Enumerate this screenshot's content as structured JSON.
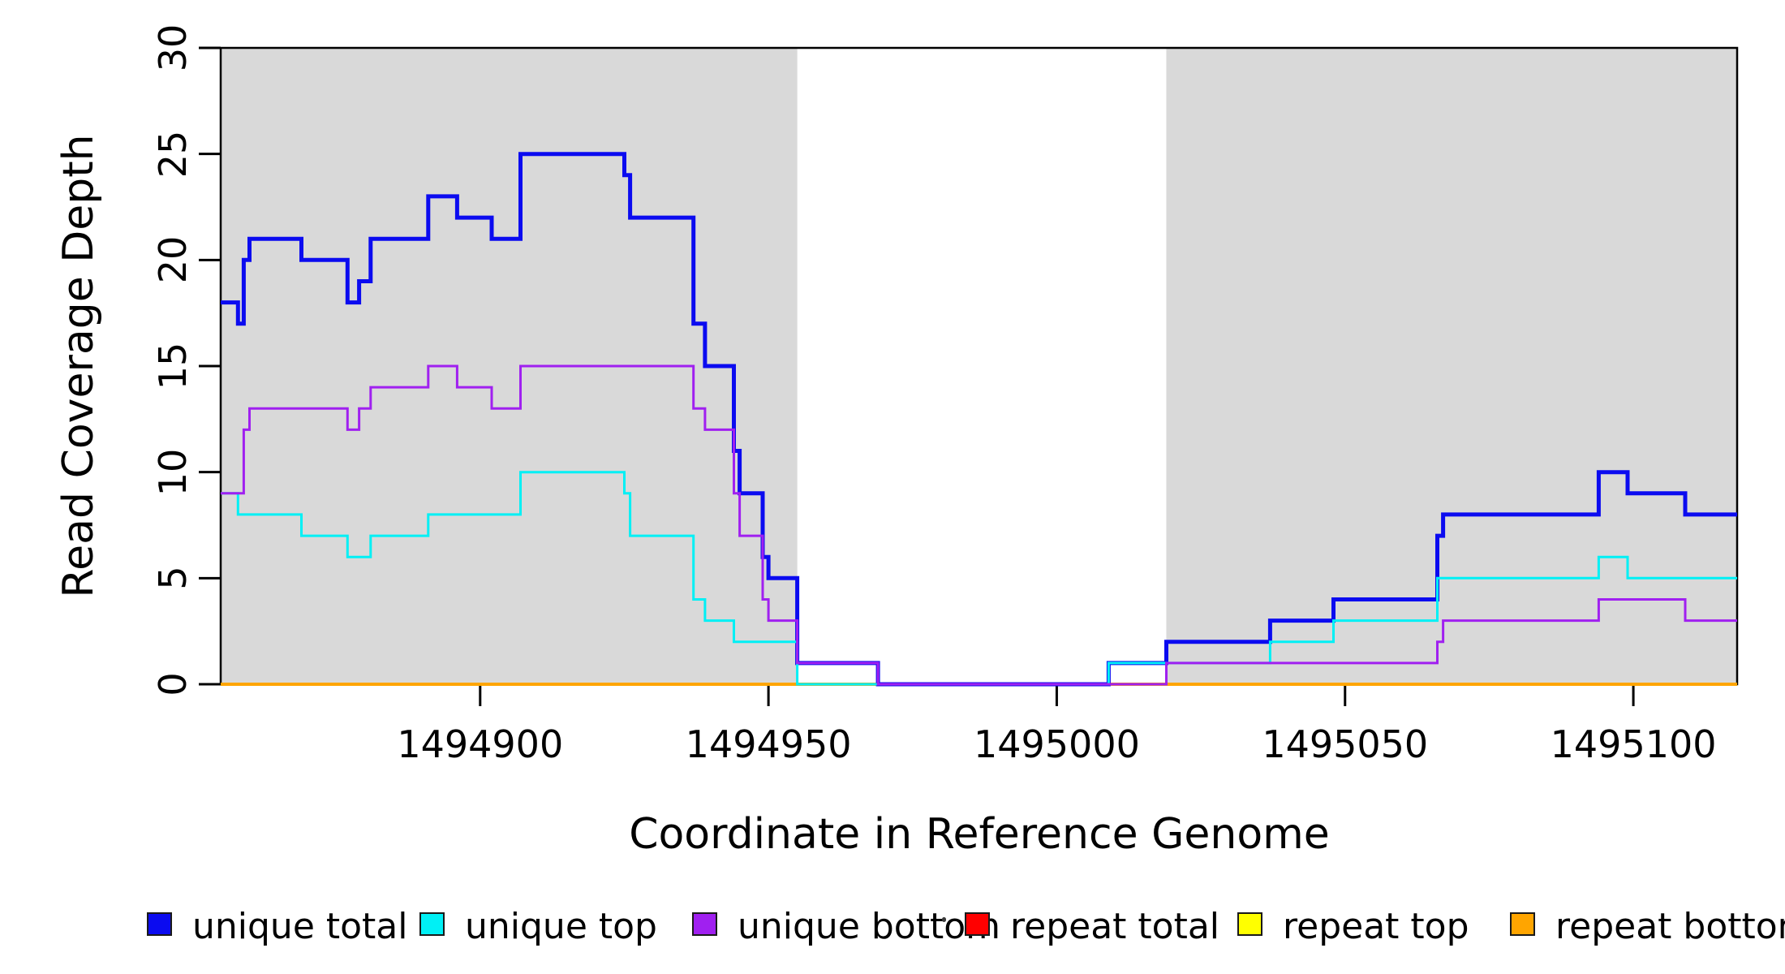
{
  "figure": {
    "x_axis_title": "Coordinate in Reference Genome",
    "y_axis_title": "Read Coverage Depth"
  },
  "chart_data": {
    "type": "line",
    "step_mode": "step-after",
    "title": "",
    "xlabel": "Coordinate in Reference Genome",
    "ylabel": "Read Coverage Depth",
    "xlim": [
      1494855,
      1495118
    ],
    "ylim": [
      0,
      30
    ],
    "x_ticks": [
      1494900,
      1494950,
      1495000,
      1495050,
      1495100
    ],
    "y_ticks": [
      0,
      5,
      10,
      15,
      20,
      25,
      30
    ],
    "grid": false,
    "legend_position": "bottom",
    "background_color": "#ffffff",
    "shaded_region_color": "#d9d9d9",
    "shaded_regions": [
      [
        1494855,
        1494955
      ],
      [
        1495019,
        1495118
      ]
    ],
    "series": [
      {
        "name": "repeat total",
        "color": "#ff0000",
        "line_width": 3,
        "points": [
          [
            1494855,
            0
          ]
        ]
      },
      {
        "name": "repeat top",
        "color": "#ffff00",
        "line_width": 3,
        "points": [
          [
            1494855,
            0
          ]
        ]
      },
      {
        "name": "repeat bottom",
        "color": "#ffa500",
        "line_width": 4,
        "points": [
          [
            1494855,
            0
          ]
        ]
      },
      {
        "name": "unique total",
        "color": "#0b0bf0",
        "line_width": 5,
        "points": [
          [
            1494855,
            18
          ],
          [
            1494858,
            17
          ],
          [
            1494859,
            20
          ],
          [
            1494860,
            21
          ],
          [
            1494869,
            20
          ],
          [
            1494877,
            18
          ],
          [
            1494879,
            19
          ],
          [
            1494881,
            21
          ],
          [
            1494891,
            23
          ],
          [
            1494896,
            22
          ],
          [
            1494902,
            21
          ],
          [
            1494907,
            25
          ],
          [
            1494925,
            24
          ],
          [
            1494926,
            22
          ],
          [
            1494937,
            17
          ],
          [
            1494939,
            15
          ],
          [
            1494944,
            11
          ],
          [
            1494945,
            9
          ],
          [
            1494949,
            6
          ],
          [
            1494950,
            5
          ],
          [
            1494955,
            1
          ],
          [
            1494969,
            0
          ],
          [
            1495009,
            1
          ],
          [
            1495019,
            2
          ],
          [
            1495037,
            3
          ],
          [
            1495048,
            4
          ],
          [
            1495066,
            7
          ],
          [
            1495067,
            8
          ],
          [
            1495094,
            10
          ],
          [
            1495099,
            9
          ],
          [
            1495109,
            8
          ]
        ]
      },
      {
        "name": "unique top",
        "color": "#00f0f5",
        "line_width": 3,
        "points": [
          [
            1494855,
            9
          ],
          [
            1494858,
            8
          ],
          [
            1494869,
            7
          ],
          [
            1494877,
            6
          ],
          [
            1494881,
            7
          ],
          [
            1494891,
            8
          ],
          [
            1494907,
            10
          ],
          [
            1494925,
            9
          ],
          [
            1494926,
            7
          ],
          [
            1494937,
            4
          ],
          [
            1494939,
            3
          ],
          [
            1494944,
            2
          ],
          [
            1494955,
            0
          ],
          [
            1495009,
            1
          ],
          [
            1495037,
            2
          ],
          [
            1495048,
            3
          ],
          [
            1495066,
            5
          ],
          [
            1495094,
            6
          ],
          [
            1495099,
            5
          ]
        ]
      },
      {
        "name": "unique bottom",
        "color": "#a020f0",
        "line_width": 3,
        "points": [
          [
            1494855,
            9
          ],
          [
            1494859,
            12
          ],
          [
            1494860,
            13
          ],
          [
            1494877,
            12
          ],
          [
            1494879,
            13
          ],
          [
            1494881,
            14
          ],
          [
            1494891,
            15
          ],
          [
            1494896,
            14
          ],
          [
            1494902,
            13
          ],
          [
            1494907,
            15
          ],
          [
            1494937,
            13
          ],
          [
            1494939,
            12
          ],
          [
            1494944,
            9
          ],
          [
            1494945,
            7
          ],
          [
            1494949,
            4
          ],
          [
            1494950,
            3
          ],
          [
            1494955,
            1
          ],
          [
            1494969,
            0
          ],
          [
            1495019,
            1
          ],
          [
            1495066,
            2
          ],
          [
            1495067,
            3
          ],
          [
            1495094,
            4
          ],
          [
            1495109,
            3
          ]
        ]
      }
    ],
    "legend": [
      {
        "label": "unique total",
        "color": "#0b0bf0"
      },
      {
        "label": "unique top",
        "color": "#00f0f5"
      },
      {
        "label": "unique bottom",
        "color": "#a020f0"
      },
      {
        "label": "repeat total",
        "color": "#ff0000"
      },
      {
        "label": "repeat top",
        "color": "#ffff00"
      },
      {
        "label": "repeat bottom",
        "color": "#ffa500"
      }
    ],
    "stray_mark": {
      "text": ".",
      "x": 1161,
      "y": 1130
    }
  }
}
